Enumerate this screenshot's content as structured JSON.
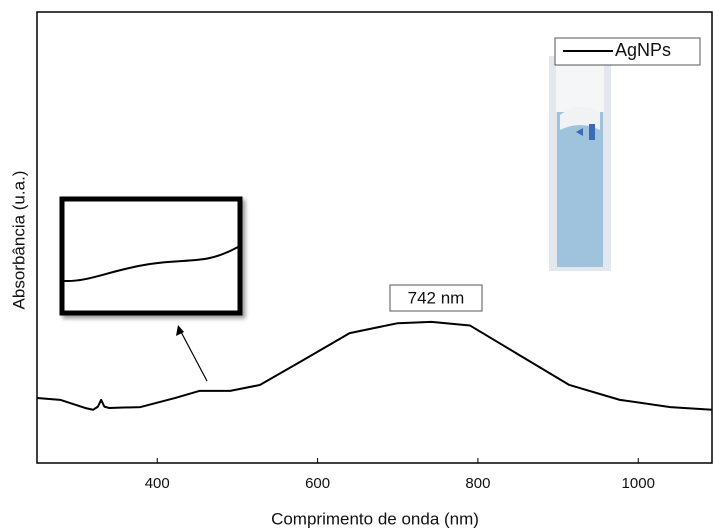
{
  "chart_data": {
    "type": "line",
    "xlabel": "Comprimento de onda (nm)",
    "ylabel": "Absorbância (u.a.)",
    "annotation": "742 nm",
    "x": [
      250,
      279,
      310,
      320,
      326,
      330,
      334,
      340,
      379,
      422,
      453,
      491,
      528,
      578,
      640,
      700,
      742,
      790,
      852,
      914,
      977,
      1040,
      1092
    ],
    "series": [
      {
        "name": "AgNPs",
        "color": "#000000",
        "values": [
          0.144,
          0.14,
          0.122,
          0.118,
          0.125,
          0.14,
          0.125,
          0.122,
          0.124,
          0.144,
          0.16,
          0.16,
          0.173,
          0.224,
          0.288,
          0.31,
          0.313,
          0.305,
          0.239,
          0.173,
          0.14,
          0.124,
          0.118
        ]
      }
    ],
    "xlim": [
      250,
      1092
    ],
    "ylim": [
      0,
      1
    ],
    "xticks": [
      400,
      600,
      800,
      1000
    ],
    "legend": "upper right"
  }
}
